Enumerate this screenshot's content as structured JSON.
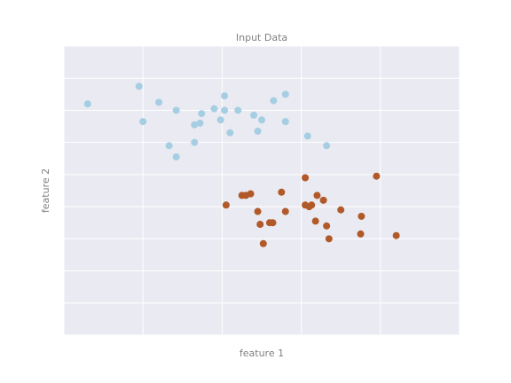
{
  "chart_data": {
    "type": "scatter",
    "title": "Input Data",
    "xlabel": "feature 1",
    "ylabel": "feature 2",
    "xlim": [
      -1.0,
      4.0
    ],
    "ylim": [
      -1.0,
      8.0
    ],
    "grid": true,
    "background_color": "#eaeaf2",
    "grid_color": "#ffffff",
    "series": [
      {
        "color": "#a6cee3",
        "points": [
          [
            -0.7,
            6.2
          ],
          [
            -0.05,
            6.75
          ],
          [
            0.0,
            5.65
          ],
          [
            0.2,
            6.25
          ],
          [
            0.33,
            4.9
          ],
          [
            0.42,
            6.0
          ],
          [
            0.42,
            4.55
          ],
          [
            0.65,
            5.0
          ],
          [
            0.65,
            5.55
          ],
          [
            0.72,
            5.6
          ],
          [
            0.74,
            5.9
          ],
          [
            0.9,
            6.05
          ],
          [
            0.98,
            5.7
          ],
          [
            1.03,
            6.0
          ],
          [
            1.03,
            6.45
          ],
          [
            1.1,
            5.3
          ],
          [
            1.2,
            6.0
          ],
          [
            1.4,
            5.85
          ],
          [
            1.45,
            5.35
          ],
          [
            1.5,
            5.7
          ],
          [
            1.65,
            6.3
          ],
          [
            1.8,
            5.65
          ],
          [
            1.8,
            6.5
          ],
          [
            2.08,
            5.2
          ],
          [
            2.32,
            4.9
          ]
        ]
      },
      {
        "color": "#b15928",
        "points": [
          [
            1.05,
            3.05
          ],
          [
            1.25,
            3.35
          ],
          [
            1.3,
            3.35
          ],
          [
            1.36,
            3.4
          ],
          [
            1.45,
            2.85
          ],
          [
            1.48,
            2.45
          ],
          [
            1.52,
            1.85
          ],
          [
            1.6,
            2.5
          ],
          [
            1.64,
            2.5
          ],
          [
            1.75,
            3.45
          ],
          [
            1.8,
            2.85
          ],
          [
            2.05,
            3.05
          ],
          [
            2.05,
            3.9
          ],
          [
            2.1,
            3.0
          ],
          [
            2.13,
            3.05
          ],
          [
            2.18,
            2.55
          ],
          [
            2.2,
            3.35
          ],
          [
            2.28,
            3.2
          ],
          [
            2.32,
            2.4
          ],
          [
            2.35,
            2.0
          ],
          [
            2.5,
            2.9
          ],
          [
            2.75,
            2.15
          ],
          [
            2.76,
            2.7
          ],
          [
            2.95,
            3.95
          ],
          [
            3.2,
            2.1
          ]
        ]
      }
    ]
  }
}
